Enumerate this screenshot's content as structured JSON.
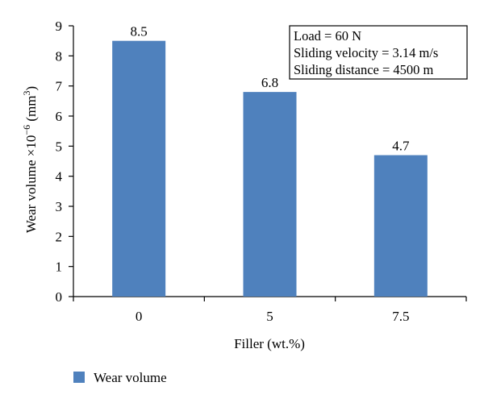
{
  "chart_data": {
    "type": "bar",
    "categories": [
      "0",
      "5",
      "7.5"
    ],
    "series": [
      {
        "name": "Wear volume",
        "values": [
          8.5,
          6.8,
          4.7
        ],
        "color": "#4f81bd"
      }
    ],
    "data_labels": [
      "8.5",
      "6.8",
      "4.7"
    ],
    "xlabel": "Filler (wt.%)",
    "ylabel_parts": {
      "base": "Wear volume ×10",
      "exp": "−6",
      "unit_open": " (mm",
      "unit_exp": "3",
      "unit_close": ")"
    },
    "ylim": [
      0,
      9
    ],
    "y_ticks": [
      0,
      1,
      2,
      3,
      4,
      5,
      6,
      7,
      8,
      9
    ],
    "grid": false,
    "legend_position": "bottom-left",
    "annotation_lines": [
      "Load = 60 N",
      "Sliding velocity = 3.14 m/s",
      "Sliding distance = 4500 m"
    ]
  }
}
